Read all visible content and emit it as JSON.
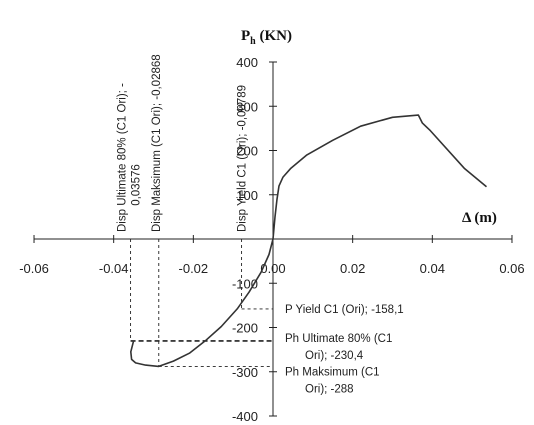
{
  "chart_data": {
    "type": "line",
    "title": "",
    "xlabel": "Δ (m)",
    "ylabel": {
      "main": "P",
      "sub": "h",
      "unit": " (KN)"
    },
    "xlim": [
      -0.06,
      0.06
    ],
    "ylim": [
      -400,
      400
    ],
    "x_ticks": [
      -0.06,
      -0.04,
      -0.02,
      0.0,
      0.02,
      0.04,
      0.06
    ],
    "x_tick_labels": [
      "-0.06",
      "-0.04",
      "-0.02",
      "0.00",
      "0.02",
      "0.04",
      "0.06"
    ],
    "y_ticks": [
      -400,
      -300,
      -200,
      -100,
      100,
      200,
      300,
      400
    ],
    "y_tick_labels": [
      "-400",
      "-300",
      "-200",
      "-100",
      "100",
      "200",
      "300",
      "400"
    ],
    "grid": false,
    "legend": "none",
    "series": [
      {
        "x": [
          0.0536,
          0.048,
          0.0395,
          0.0375,
          0.0365,
          0.03,
          0.022,
          0.015,
          0.0085,
          0.0045,
          0.0025,
          0.0015,
          0.001,
          0.0005,
          0.0,
          -0.001,
          -0.003,
          -0.006,
          -0.009,
          -0.013,
          -0.017,
          -0.021,
          -0.025,
          -0.0287,
          -0.032,
          -0.0345,
          -0.0355,
          -0.0357,
          -0.035
        ],
        "y": [
          118,
          160,
          245,
          262,
          280,
          275,
          255,
          223,
          190,
          160,
          140,
          120,
          90,
          50,
          0,
          -35,
          -75,
          -120,
          -158,
          -198,
          -230,
          -258,
          -276,
          -288,
          -285,
          -280,
          -272,
          -255,
          -230
        ]
      }
    ],
    "guides": [
      {
        "type": "vertical",
        "x": -0.00789,
        "from_y": -158.1,
        "label": "Disp Yield C1 (Ori); -0,00789"
      },
      {
        "type": "vertical",
        "x": -0.02868,
        "from_y": -288,
        "label": "Disp Maksimum (C1 Ori); -0,02868"
      },
      {
        "type": "vertical",
        "x": -0.03576,
        "from_y": -230.4,
        "label_lines": [
          "Disp Ultimate 80% (C1 Ori); -",
          "0,03576"
        ]
      },
      {
        "type": "horizontal",
        "y": -158.1,
        "from_x": -0.00789,
        "label": "P Yield C1 (Ori); -158,1"
      },
      {
        "type": "horizontal",
        "y": -230.4,
        "from_x": -0.03576,
        "bold": true,
        "label_lines": [
          "Ph Ultimate  80% (C1",
          "Ori); -230,4"
        ]
      },
      {
        "type": "horizontal",
        "y": -288,
        "from_x": -0.02868,
        "label_lines": [
          "Ph Maksimum  (C1",
          "Ori); -288"
        ]
      }
    ]
  }
}
